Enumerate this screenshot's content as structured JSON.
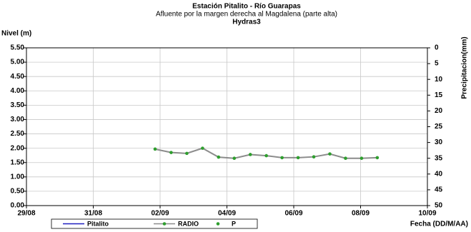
{
  "chart_data": {
    "type": "line",
    "title": "Estación Pitalito  - Río Guarapas",
    "subtitle": "Afluente por la margen derecha al Magdalena (parte alta)",
    "subtitle2": "Hydras3",
    "ylabel": "Nivel (m)",
    "y2label": "Precipitacion(mm)",
    "xlabel": "Fecha (DD/M/AA)",
    "x": [
      3.85,
      4.33,
      4.8,
      5.27,
      5.75,
      6.22,
      6.7,
      7.18,
      7.65,
      8.13,
      8.6,
      9.08,
      9.55,
      10.03,
      10.5
    ],
    "series": [
      {
        "name": "Pitalito",
        "color": "#1f1fbf",
        "values": [
          null,
          null,
          null,
          null,
          null,
          null,
          null,
          null,
          null,
          null,
          null,
          null,
          null,
          null,
          null
        ]
      },
      {
        "name": "RADIO",
        "color": "#8c8c8c",
        "marker_color": "#2e9e2e",
        "values": [
          1.97,
          1.85,
          1.82,
          2.0,
          1.69,
          1.65,
          1.78,
          1.74,
          1.67,
          1.67,
          1.7,
          1.8,
          1.65,
          1.65,
          1.67
        ]
      },
      {
        "name": "P",
        "color": "#2e9e2e",
        "axis": "y2",
        "values": [
          null,
          null,
          null,
          null,
          null,
          null,
          null,
          null,
          null,
          null,
          null,
          null,
          null,
          null,
          null
        ]
      }
    ],
    "xlim": [
      0,
      12
    ],
    "xticks": [
      {
        "value": 0,
        "label": "29/08"
      },
      {
        "value": 2,
        "label": "31/08"
      },
      {
        "value": 4,
        "label": "02/09"
      },
      {
        "value": 6,
        "label": "04/09"
      },
      {
        "value": 8,
        "label": "06/09"
      },
      {
        "value": 10,
        "label": "08/09"
      },
      {
        "value": 12,
        "label": "10/09"
      }
    ],
    "ylim": [
      0,
      5.5
    ],
    "yticks": [
      {
        "value": 0,
        "label": "0.00"
      },
      {
        "value": 0.5,
        "label": "0.50"
      },
      {
        "value": 1,
        "label": "1.00"
      },
      {
        "value": 1.5,
        "label": "1.50"
      },
      {
        "value": 2,
        "label": "2.00"
      },
      {
        "value": 2.5,
        "label": "2.50"
      },
      {
        "value": 3,
        "label": "3.00"
      },
      {
        "value": 3.5,
        "label": "3.50"
      },
      {
        "value": 4,
        "label": "4.00"
      },
      {
        "value": 4.5,
        "label": "4.50"
      },
      {
        "value": 5,
        "label": "5.00"
      },
      {
        "value": 5.5,
        "label": "5.50"
      }
    ],
    "y2lim": [
      50,
      0
    ],
    "y2ticks": [
      0,
      5,
      10,
      15,
      20,
      25,
      30,
      35,
      40,
      45,
      50
    ],
    "grid": true
  }
}
